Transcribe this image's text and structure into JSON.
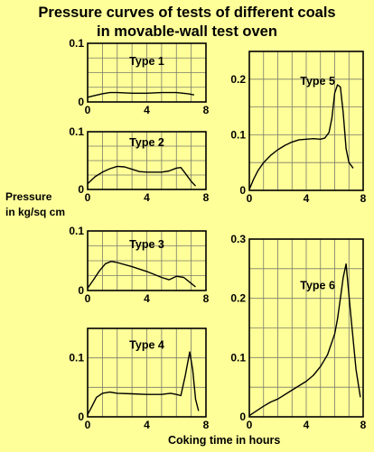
{
  "title": {
    "line1": "Pressure curves of tests of different coals",
    "line2": "in movable-wall test oven"
  },
  "ylabel": {
    "line1": "Pressure",
    "line2": "in kg/sq cm"
  },
  "xlabel": "Coking time in hours",
  "chart_data": [
    {
      "type": "line",
      "title": "Type 1",
      "xlim": [
        0,
        8
      ],
      "ylim": [
        0,
        0.1
      ],
      "xticks": [
        "0",
        "4",
        "8"
      ],
      "yticks": [
        "0",
        "0.1"
      ],
      "grid": true,
      "x": [
        0,
        0.5,
        1,
        1.5,
        2,
        3,
        4,
        5,
        6,
        6.8,
        7.2
      ],
      "y": [
        0.008,
        0.011,
        0.014,
        0.016,
        0.016,
        0.015,
        0.015,
        0.016,
        0.016,
        0.014,
        0.012
      ]
    },
    {
      "type": "line",
      "title": "Type 2",
      "xlim": [
        0,
        8
      ],
      "ylim": [
        0,
        0.1
      ],
      "xticks": [
        "0",
        "4",
        "8"
      ],
      "yticks": [
        "0",
        "0.1"
      ],
      "grid": true,
      "x": [
        0,
        0.5,
        1,
        1.5,
        2,
        2.5,
        3,
        3.5,
        4,
        4.5,
        5,
        5.5,
        6,
        6.3,
        6.6,
        7,
        7.3
      ],
      "y": [
        0.01,
        0.022,
        0.03,
        0.036,
        0.04,
        0.039,
        0.035,
        0.031,
        0.03,
        0.03,
        0.03,
        0.032,
        0.037,
        0.038,
        0.028,
        0.014,
        0.006
      ]
    },
    {
      "type": "line",
      "title": "Type 3",
      "xlim": [
        0,
        8
      ],
      "ylim": [
        0,
        0.1
      ],
      "xticks": [
        "0",
        "4",
        "8"
      ],
      "yticks": [
        "0",
        "0.1"
      ],
      "grid": true,
      "x": [
        0,
        0.4,
        0.8,
        1.2,
        1.6,
        2,
        3,
        4,
        5,
        5.5,
        6,
        6.5,
        7,
        7.3
      ],
      "y": [
        0.004,
        0.018,
        0.033,
        0.045,
        0.049,
        0.047,
        0.04,
        0.032,
        0.022,
        0.018,
        0.024,
        0.022,
        0.012,
        0.006
      ]
    },
    {
      "type": "line",
      "title": "Type 4",
      "xlim": [
        0,
        8
      ],
      "ylim": [
        0,
        0.15
      ],
      "xticks": [
        "0",
        "4",
        "8"
      ],
      "yticks": [
        "0",
        "0.1"
      ],
      "grid": true,
      "x": [
        0,
        0.3,
        0.6,
        1,
        1.5,
        2,
        3,
        4,
        5,
        5.6,
        6,
        6.3,
        6.6,
        6.9,
        7.1,
        7.3,
        7.5
      ],
      "y": [
        0.004,
        0.018,
        0.033,
        0.04,
        0.042,
        0.04,
        0.039,
        0.038,
        0.038,
        0.04,
        0.038,
        0.036,
        0.07,
        0.11,
        0.08,
        0.03,
        0.01
      ]
    },
    {
      "type": "line",
      "title": "Type 5",
      "xlim": [
        0,
        8
      ],
      "ylim": [
        0,
        0.25
      ],
      "xticks": [
        "0",
        "4",
        "8"
      ],
      "yticks": [
        "0",
        "0.1",
        "0.2"
      ],
      "grid": true,
      "x": [
        0,
        0.3,
        0.6,
        1,
        1.5,
        2,
        2.5,
        3,
        3.5,
        4,
        4.5,
        5,
        5.3,
        5.6,
        5.8,
        6.0,
        6.2,
        6.4,
        6.6,
        6.8,
        7.0,
        7.3
      ],
      "y": [
        0.002,
        0.02,
        0.035,
        0.05,
        0.063,
        0.073,
        0.081,
        0.087,
        0.091,
        0.092,
        0.093,
        0.092,
        0.094,
        0.104,
        0.13,
        0.175,
        0.19,
        0.186,
        0.14,
        0.075,
        0.05,
        0.04
      ]
    },
    {
      "type": "line",
      "title": "Type 6",
      "xlim": [
        0,
        8
      ],
      "ylim": [
        0,
        0.3
      ],
      "xticks": [
        "0",
        "4",
        "8"
      ],
      "yticks": [
        "0",
        "0.1",
        "0.2",
        "0.3"
      ],
      "grid": true,
      "x": [
        0,
        0.5,
        1,
        1.5,
        2,
        3,
        4,
        4.5,
        5,
        5.5,
        6,
        6.2,
        6.4,
        6.6,
        6.8,
        7.1,
        7.5,
        7.8
      ],
      "y": [
        0.002,
        0.01,
        0.018,
        0.025,
        0.03,
        0.045,
        0.06,
        0.07,
        0.085,
        0.105,
        0.14,
        0.165,
        0.2,
        0.235,
        0.258,
        0.18,
        0.08,
        0.033
      ]
    }
  ]
}
